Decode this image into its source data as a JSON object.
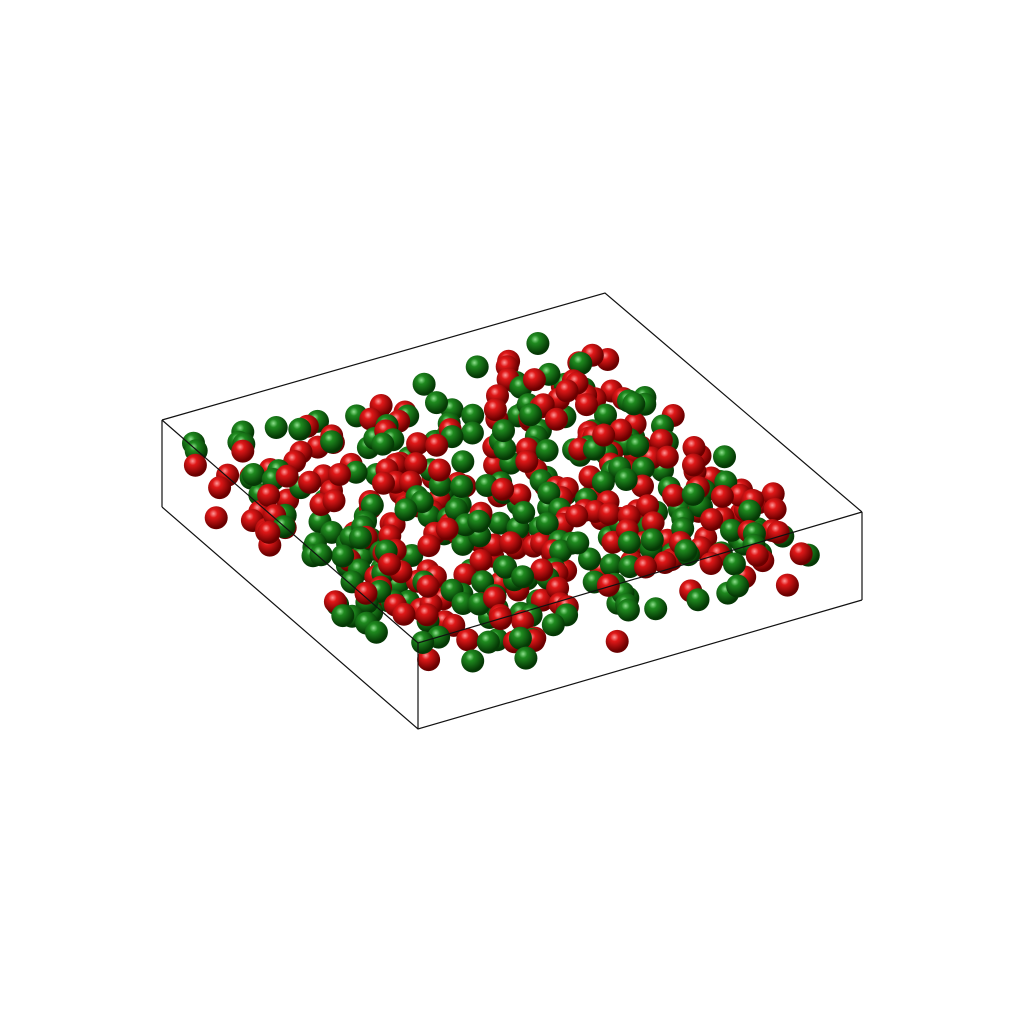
{
  "scene": {
    "background": "#ffffff",
    "edge_color": "#111111",
    "sphere_types": [
      {
        "name": "red",
        "base": "#e01818",
        "light": "#ff9a9a",
        "dark": "#6a0000"
      },
      {
        "name": "green",
        "base": "#1f8a1f",
        "light": "#8ee08e",
        "dark": "#053805"
      }
    ],
    "sphere_counts": {
      "red": 250,
      "green": 250
    }
  }
}
